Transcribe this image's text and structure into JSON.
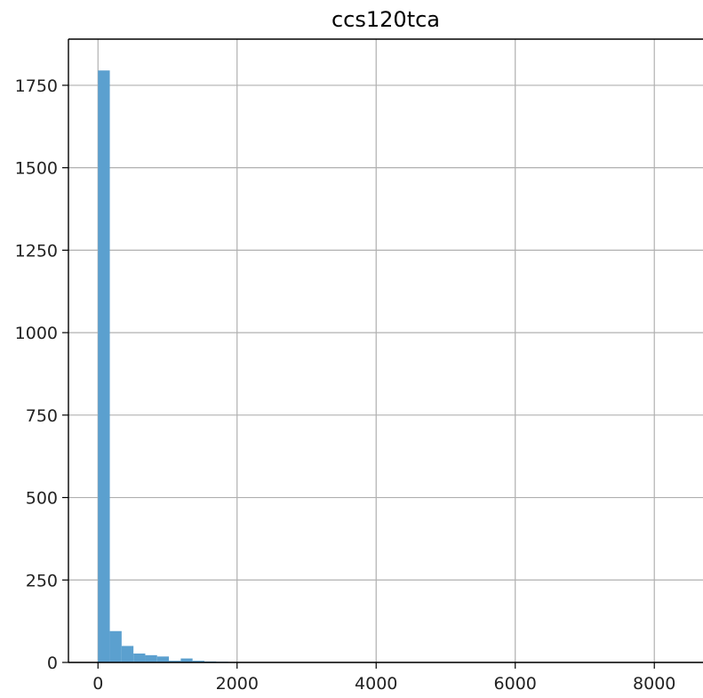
{
  "chart_data": {
    "type": "bar",
    "title": "ccs120tca",
    "xlabel": "",
    "ylabel": "",
    "xlim": [
      -425,
      8700
    ],
    "ylim": [
      0,
      1890
    ],
    "xticks": [
      0,
      2000,
      4000,
      6000,
      8000
    ],
    "yticks": [
      0,
      250,
      500,
      750,
      1000,
      1250,
      1500,
      1750
    ],
    "grid": true,
    "bar_color": "#5ba0cf",
    "bin_width": 170,
    "bin_start": 0,
    "values": [
      1795,
      95,
      50,
      27,
      22,
      18,
      5,
      12,
      5,
      3,
      2,
      1,
      1,
      1,
      1,
      1,
      0,
      1,
      0,
      1,
      0,
      0,
      0,
      0,
      0,
      0,
      0,
      0,
      0,
      0,
      0,
      0,
      0,
      0,
      0,
      0,
      0,
      0,
      0,
      0,
      0,
      0,
      0,
      0,
      0,
      0,
      0,
      0,
      0,
      1
    ]
  }
}
